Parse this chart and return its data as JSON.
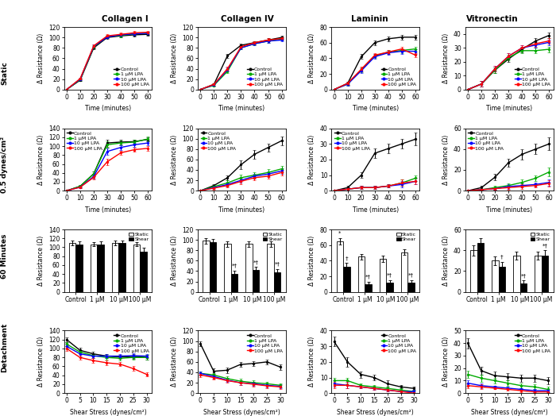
{
  "col_titles": [
    "Collagen I",
    "Collagen IV",
    "Laminin",
    "Vitronectin"
  ],
  "row_titles": [
    "Static",
    "0.5 dynes/cm²",
    "60 Minutes",
    "Detachment"
  ],
  "colors": {
    "control": "#000000",
    "lpa1": "#00AA00",
    "lpa10": "#0000FF",
    "lpa100": "#FF0000"
  },
  "legend_labels": [
    "Control",
    "1 μM LPA",
    "10 μM LPA",
    "100 μM LPA"
  ],
  "time_points": [
    0,
    10,
    20,
    30,
    40,
    50,
    60
  ],
  "shear_points": [
    0,
    5,
    10,
    15,
    20,
    25,
    30
  ],
  "conc_labels": [
    "Control",
    "1 μM",
    "10 μM",
    "100 μM"
  ],
  "row0": {
    "col0": {
      "ylim": [
        0,
        120
      ],
      "yticks": [
        0,
        20,
        40,
        60,
        80,
        100,
        120
      ],
      "data": {
        "control": [
          0,
          18,
          80,
          100,
          103,
          105,
          106
        ],
        "lpa1": [
          0,
          19,
          82,
          102,
          104,
          107,
          108
        ],
        "lpa10": [
          0,
          20,
          83,
          101,
          105,
          107,
          108
        ],
        "lpa100": [
          0,
          21,
          84,
          103,
          106,
          109,
          110
        ]
      },
      "err": {
        "control": [
          0,
          2,
          3,
          3,
          3,
          3,
          3
        ],
        "lpa1": [
          0,
          2,
          3,
          3,
          3,
          3,
          3
        ],
        "lpa10": [
          0,
          2,
          3,
          3,
          3,
          3,
          3
        ],
        "lpa100": [
          0,
          2,
          3,
          3,
          3,
          3,
          3
        ]
      }
    },
    "col1": {
      "ylim": [
        0,
        120
      ],
      "yticks": [
        0,
        20,
        40,
        60,
        80,
        100,
        120
      ],
      "data": {
        "control": [
          0,
          10,
          65,
          85,
          90,
          95,
          100
        ],
        "lpa1": [
          0,
          8,
          35,
          80,
          88,
          93,
          97
        ],
        "lpa10": [
          0,
          9,
          38,
          80,
          88,
          93,
          95
        ],
        "lpa100": [
          0,
          10,
          40,
          82,
          90,
          95,
          98
        ]
      },
      "err": {
        "control": [
          0,
          2,
          4,
          3,
          3,
          3,
          3
        ],
        "lpa1": [
          0,
          2,
          4,
          3,
          3,
          3,
          3
        ],
        "lpa10": [
          0,
          2,
          4,
          3,
          3,
          3,
          3
        ],
        "lpa100": [
          0,
          2,
          4,
          3,
          3,
          3,
          3
        ]
      }
    },
    "col2": {
      "ylim": [
        0,
        80
      ],
      "yticks": [
        0,
        20,
        40,
        60,
        80
      ],
      "data": {
        "control": [
          0,
          8,
          42,
          60,
          65,
          67,
          67
        ],
        "lpa1": [
          0,
          7,
          25,
          43,
          48,
          50,
          52
        ],
        "lpa10": [
          0,
          7,
          24,
          42,
          47,
          49,
          49
        ],
        "lpa100": [
          0,
          8,
          26,
          44,
          48,
          52,
          44
        ]
      },
      "err": {
        "control": [
          0,
          2,
          3,
          3,
          3,
          3,
          3
        ],
        "lpa1": [
          0,
          2,
          3,
          3,
          3,
          3,
          3
        ],
        "lpa10": [
          0,
          2,
          3,
          3,
          3,
          3,
          3
        ],
        "lpa100": [
          0,
          2,
          3,
          3,
          3,
          3,
          3
        ]
      }
    },
    "col3": {
      "ylim": [
        0,
        45
      ],
      "yticks": [
        0,
        10,
        20,
        30,
        40
      ],
      "data": {
        "control": [
          0,
          4,
          14,
          22,
          29,
          35,
          39
        ],
        "lpa1": [
          0,
          4,
          14,
          23,
          28,
          28,
          29
        ],
        "lpa10": [
          0,
          4,
          15,
          24,
          30,
          32,
          34
        ],
        "lpa100": [
          0,
          4,
          15,
          24,
          30,
          33,
          35
        ]
      },
      "err": {
        "control": [
          0,
          2,
          2,
          2,
          2,
          2,
          2
        ],
        "lpa1": [
          0,
          2,
          2,
          2,
          2,
          2,
          2
        ],
        "lpa10": [
          0,
          2,
          2,
          2,
          2,
          2,
          2
        ],
        "lpa100": [
          0,
          2,
          2,
          2,
          2,
          2,
          2
        ]
      }
    }
  },
  "row1": {
    "col0": {
      "ylim": [
        0,
        140
      ],
      "yticks": [
        0,
        20,
        40,
        60,
        80,
        100,
        120,
        140
      ],
      "data": {
        "control": [
          0,
          10,
          38,
          107,
          109,
          110,
          115
        ],
        "lpa1": [
          0,
          10,
          38,
          103,
          107,
          109,
          116
        ],
        "lpa10": [
          0,
          8,
          32,
          88,
          97,
          103,
          107
        ],
        "lpa100": [
          0,
          8,
          30,
          65,
          85,
          92,
          95
        ]
      },
      "err": {
        "control": [
          0,
          3,
          5,
          8,
          5,
          5,
          5
        ],
        "lpa1": [
          0,
          3,
          5,
          7,
          5,
          5,
          5
        ],
        "lpa10": [
          0,
          3,
          5,
          7,
          5,
          5,
          5
        ],
        "lpa100": [
          0,
          3,
          5,
          7,
          5,
          5,
          5
        ]
      }
    },
    "col1": {
      "ylim": [
        0,
        120
      ],
      "yticks": [
        0,
        20,
        40,
        60,
        80,
        100,
        120
      ],
      "data": {
        "control": [
          0,
          10,
          25,
          50,
          70,
          83,
          96
        ],
        "lpa1": [
          0,
          8,
          15,
          25,
          30,
          35,
          42
        ],
        "lpa10": [
          0,
          6,
          12,
          20,
          28,
          32,
          38
        ],
        "lpa100": [
          0,
          5,
          10,
          18,
          25,
          28,
          35
        ]
      },
      "err": {
        "control": [
          0,
          3,
          5,
          8,
          8,
          8,
          8
        ],
        "lpa1": [
          0,
          3,
          5,
          6,
          6,
          6,
          6
        ],
        "lpa10": [
          0,
          3,
          4,
          5,
          5,
          5,
          5
        ],
        "lpa100": [
          0,
          3,
          4,
          5,
          5,
          5,
          5
        ]
      }
    },
    "col2": {
      "ylim": [
        0,
        40
      ],
      "yticks": [
        0,
        10,
        20,
        30,
        40
      ],
      "data": {
        "control": [
          0,
          2,
          10,
          24,
          27,
          30,
          33
        ],
        "lpa1": [
          0,
          1,
          2,
          2,
          3,
          5,
          8
        ],
        "lpa10": [
          0,
          1,
          2,
          2,
          3,
          4,
          6
        ],
        "lpa100": [
          0,
          1,
          2,
          2,
          3,
          5,
          6
        ]
      },
      "err": {
        "control": [
          0,
          1,
          2,
          3,
          3,
          3,
          4
        ],
        "lpa1": [
          0,
          1,
          1,
          1,
          1,
          2,
          2
        ],
        "lpa10": [
          0,
          1,
          1,
          1,
          1,
          2,
          2
        ],
        "lpa100": [
          0,
          1,
          1,
          1,
          1,
          2,
          2
        ]
      }
    },
    "col3": {
      "ylim": [
        0,
        60
      ],
      "yticks": [
        0,
        20,
        40,
        60
      ],
      "data": {
        "control": [
          0,
          3,
          13,
          27,
          35,
          40,
          45
        ],
        "lpa1": [
          0,
          1,
          3,
          5,
          8,
          12,
          18
        ],
        "lpa10": [
          0,
          1,
          2,
          4,
          5,
          6,
          8
        ],
        "lpa100": [
          0,
          1,
          2,
          3,
          4,
          5,
          7
        ]
      },
      "err": {
        "control": [
          0,
          2,
          3,
          4,
          5,
          5,
          6
        ],
        "lpa1": [
          0,
          1,
          2,
          2,
          3,
          3,
          4
        ],
        "lpa10": [
          0,
          1,
          1,
          2,
          2,
          2,
          3
        ],
        "lpa100": [
          0,
          1,
          1,
          2,
          2,
          2,
          3
        ]
      }
    }
  },
  "row2": {
    "col0": {
      "ylim": [
        0,
        140
      ],
      "yticks": [
        0,
        20,
        40,
        60,
        80,
        100,
        120,
        140
      ],
      "static": [
        110,
        107,
        110,
        107
      ],
      "shear": [
        107,
        107,
        110,
        91
      ],
      "static_err": [
        5,
        5,
        5,
        5
      ],
      "shear_err": [
        6,
        6,
        6,
        8
      ],
      "annot_static": [
        "",
        "",
        "",
        ""
      ],
      "annot_shear": [
        "",
        "",
        "",
        ""
      ]
    },
    "col1": {
      "ylim": [
        0,
        120
      ],
      "yticks": [
        0,
        20,
        40,
        60,
        80,
        100,
        120
      ],
      "static": [
        98,
        92,
        92,
        92
      ],
      "shear": [
        95,
        35,
        42,
        38
      ],
      "static_err": [
        5,
        5,
        5,
        5
      ],
      "shear_err": [
        6,
        6,
        6,
        6
      ],
      "annot_static": [
        "",
        "",
        "",
        ""
      ],
      "annot_shear": [
        "",
        "*†",
        "*†",
        "*†"
      ]
    },
    "col2": {
      "ylim": [
        0,
        80
      ],
      "yticks": [
        0,
        20,
        40,
        60,
        80
      ],
      "static": [
        65,
        45,
        42,
        51
      ],
      "shear": [
        32,
        10,
        12,
        12
      ],
      "static_err": [
        4,
        4,
        4,
        4
      ],
      "shear_err": [
        5,
        3,
        3,
        3
      ],
      "annot_static": [
        "*",
        "",
        "",
        ""
      ],
      "annot_shear": [
        "†",
        "*†",
        "*†",
        "*†"
      ]
    },
    "col3": {
      "ylim": [
        0,
        60
      ],
      "yticks": [
        0,
        20,
        40,
        60
      ],
      "static": [
        40,
        30,
        35,
        35
      ],
      "shear": [
        47,
        24,
        8,
        35
      ],
      "static_err": [
        5,
        4,
        4,
        4
      ],
      "shear_err": [
        5,
        5,
        3,
        5
      ],
      "annot_static": [
        "",
        "",
        "",
        ""
      ],
      "annot_shear": [
        "",
        "†",
        "*†",
        "*†"
      ]
    }
  },
  "row3": {
    "col0": {
      "ylim": [
        0,
        140
      ],
      "yticks": [
        0,
        20,
        40,
        60,
        80,
        100,
        120,
        140
      ],
      "data": {
        "control": [
          120,
          96,
          88,
          83,
          81,
          82,
          80
        ],
        "lpa1": [
          110,
          92,
          84,
          80,
          78,
          80,
          80
        ],
        "lpa10": [
          105,
          88,
          83,
          83,
          83,
          84,
          83
        ],
        "lpa100": [
          100,
          80,
          73,
          68,
          65,
          55,
          42
        ]
      },
      "err": {
        "control": [
          5,
          5,
          5,
          5,
          5,
          5,
          5
        ],
        "lpa1": [
          5,
          5,
          5,
          5,
          5,
          5,
          5
        ],
        "lpa10": [
          5,
          5,
          5,
          5,
          5,
          5,
          5
        ],
        "lpa100": [
          5,
          5,
          5,
          5,
          5,
          5,
          5
        ]
      }
    },
    "col1": {
      "ylim": [
        0,
        120
      ],
      "yticks": [
        0,
        20,
        40,
        60,
        80,
        100,
        120
      ],
      "data": {
        "control": [
          95,
          42,
          44,
          55,
          57,
          60,
          50
        ],
        "lpa1": [
          38,
          35,
          28,
          23,
          20,
          18,
          15
        ],
        "lpa10": [
          38,
          32,
          25,
          20,
          18,
          15,
          13
        ],
        "lpa100": [
          35,
          30,
          24,
          20,
          17,
          14,
          12
        ]
      },
      "err": {
        "control": [
          5,
          5,
          5,
          5,
          5,
          5,
          5
        ],
        "lpa1": [
          4,
          4,
          4,
          4,
          4,
          4,
          4
        ],
        "lpa10": [
          4,
          4,
          4,
          4,
          4,
          4,
          4
        ],
        "lpa100": [
          4,
          4,
          4,
          4,
          4,
          4,
          4
        ]
      }
    },
    "col2": {
      "ylim": [
        0,
        40
      ],
      "yticks": [
        0,
        10,
        20,
        30,
        40
      ],
      "data": {
        "control": [
          33,
          20,
          12,
          10,
          6,
          4,
          3
        ],
        "lpa1": [
          8,
          8,
          5,
          4,
          3,
          2,
          1
        ],
        "lpa10": [
          6,
          5,
          4,
          3,
          2,
          1,
          1
        ],
        "lpa100": [
          5,
          5,
          4,
          3,
          2,
          1,
          0
        ]
      },
      "err": {
        "control": [
          3,
          3,
          2,
          2,
          2,
          1,
          1
        ],
        "lpa1": [
          2,
          2,
          1,
          1,
          1,
          1,
          1
        ],
        "lpa10": [
          2,
          2,
          1,
          1,
          1,
          1,
          1
        ],
        "lpa100": [
          2,
          2,
          1,
          1,
          1,
          1,
          1
        ]
      }
    },
    "col3": {
      "ylim": [
        0,
        50
      ],
      "yticks": [
        0,
        10,
        20,
        30,
        40,
        50
      ],
      "data": {
        "control": [
          40,
          18,
          14,
          13,
          12,
          12,
          10
        ],
        "lpa1": [
          15,
          12,
          10,
          8,
          6,
          5,
          3
        ],
        "lpa10": [
          8,
          6,
          5,
          4,
          3,
          2,
          2
        ],
        "lpa100": [
          6,
          5,
          4,
          3,
          2,
          1,
          1
        ]
      },
      "err": {
        "control": [
          4,
          3,
          3,
          3,
          3,
          3,
          3
        ],
        "lpa1": [
          3,
          3,
          2,
          2,
          2,
          2,
          2
        ],
        "lpa10": [
          2,
          2,
          1,
          1,
          1,
          1,
          1
        ],
        "lpa100": [
          2,
          2,
          1,
          1,
          1,
          1,
          1
        ]
      }
    }
  }
}
